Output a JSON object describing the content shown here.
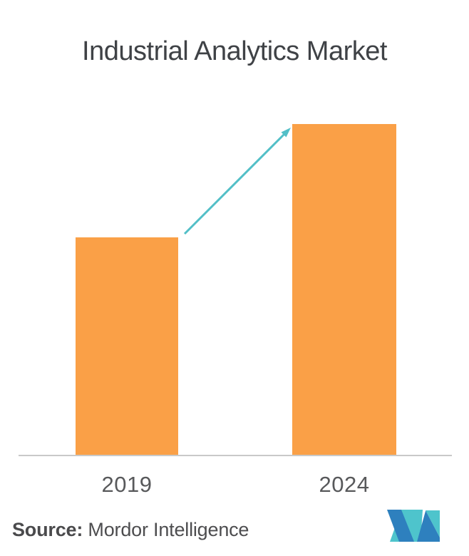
{
  "chart_data": {
    "type": "bar",
    "title": "Industrial Analytics Market",
    "categories": [
      "2019",
      "2024"
    ],
    "values": [
      305,
      464
    ],
    "value_unit": "bar pixel height (chart displays no numeric y-axis)",
    "xlabel": "",
    "ylabel": "",
    "grid": false,
    "legend": false,
    "bar_color": "#FAA047",
    "arrow_color": "#52BFC7",
    "axis_line_color": "#C9C9C9",
    "title_color": "#3F4246",
    "label_color": "#58595B",
    "annotations": [
      "teal growth arrow pointing from top of 2019 bar to top of 2024 bar"
    ]
  },
  "footer": {
    "source_label": "Source:",
    "source_value": " Mordor Intelligence",
    "logo": {
      "name": "mordor-intelligence-logo",
      "blue": "#2E80BE",
      "teal": "#4EC4CC"
    }
  }
}
